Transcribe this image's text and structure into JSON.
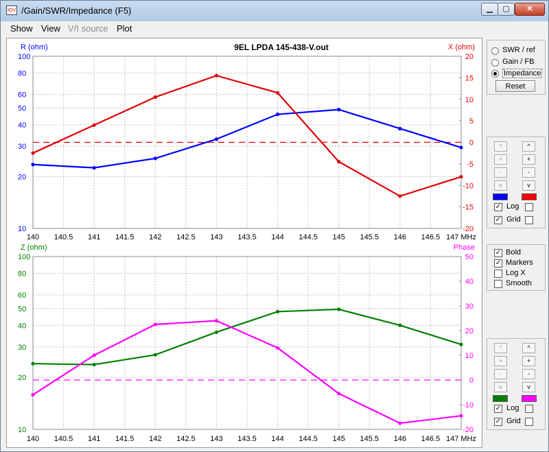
{
  "window": {
    "title": "/Gain/SWR/Impedance (F5)",
    "icon_label": "IOV"
  },
  "window_buttons": {
    "minimize": "▁",
    "maximize": "▢",
    "close": "✕"
  },
  "menu": [
    "Show",
    "View",
    "V/I source",
    "Plot"
  ],
  "menu_disabled": [
    false,
    false,
    true,
    false
  ],
  "display_mode": {
    "options": [
      "SWR / ref",
      "Gain / FB",
      "Impedance"
    ],
    "selected_index": 2,
    "reset_label": "Reset"
  },
  "top_axis_controls": {
    "left_color": "#0000ff",
    "right_color": "#ff0000",
    "log_label": "Log",
    "log_left": true,
    "log_right": false,
    "grid_label": "Grid",
    "grid_left": true,
    "grid_right": false
  },
  "display_options": {
    "bold_label": "Bold",
    "bold": true,
    "markers_label": "Markers",
    "markers": true,
    "logx_label": "Log X",
    "logx": false,
    "smooth_label": "Smooth",
    "smooth": false
  },
  "bottom_axis_controls": {
    "left_color": "#008000",
    "right_color": "#ff00ff",
    "log_label": "Log",
    "log_left": true,
    "log_right": false,
    "grid_label": "Grid",
    "grid_left": true,
    "grid_right": false
  },
  "spin_buttons": {
    "up": "^",
    "plus": "+",
    "minus": "-",
    "down": "v"
  },
  "chart_data": [
    {
      "type": "line",
      "title": "9EL LPDA 145-438-V.out",
      "x": [
        140,
        141,
        142,
        143,
        144,
        145,
        146,
        147
      ],
      "x_ticks": [
        "140",
        "140.5",
        "141",
        "141.5",
        "142",
        "142.5",
        "143",
        "143.5",
        "144",
        "144.5",
        "145",
        "145.5",
        "146",
        "146.5",
        "147 MHz"
      ],
      "xlim": [
        140,
        147
      ],
      "ylabel_left": "R (ohm)",
      "ylabel_right": "X (ohm)",
      "y_left_log": true,
      "ylim_left": [
        10,
        100
      ],
      "y_left_ticks": [
        "10",
        "20",
        "30",
        "40",
        "50",
        "60",
        "80",
        "100"
      ],
      "ylim_right": [
        -20,
        20
      ],
      "y_right_ticks": [
        "20",
        "15",
        "10",
        "5",
        "0",
        "-5",
        "-10",
        "-15",
        "-20"
      ],
      "grid": true,
      "reference_line_right": 0,
      "series": [
        {
          "name": "R (ohm)",
          "axis": "left",
          "color": "#0000ff",
          "values": [
            23.5,
            22.5,
            25.5,
            33,
            46,
            49,
            38,
            29.5
          ]
        },
        {
          "name": "X (ohm)",
          "axis": "right",
          "color": "#e00000",
          "values": [
            -2.5,
            4,
            10.5,
            15.5,
            11.5,
            -4.5,
            -12.5,
            -8
          ]
        }
      ]
    },
    {
      "type": "line",
      "title": "",
      "x": [
        140,
        141,
        142,
        143,
        144,
        145,
        146,
        147
      ],
      "x_ticks": [
        "140",
        "140.5",
        "141",
        "141.5",
        "142",
        "142.5",
        "143",
        "143.5",
        "144",
        "144.5",
        "145",
        "145.5",
        "146",
        "146.5",
        "147 MHz"
      ],
      "xlim": [
        140,
        147
      ],
      "ylabel_left": "Z (ohm)",
      "ylabel_right": "Phase",
      "y_left_log": true,
      "ylim_left": [
        10,
        100
      ],
      "y_left_ticks": [
        "10",
        "20",
        "30",
        "40",
        "50",
        "60",
        "80",
        "100"
      ],
      "ylim_right": [
        -20,
        50
      ],
      "y_right_ticks": [
        "50",
        "40",
        "30",
        "20",
        "10",
        "0",
        "-10",
        "-20"
      ],
      "grid": true,
      "reference_line_right": 0,
      "series": [
        {
          "name": "Z (ohm)",
          "axis": "left",
          "color": "#008000",
          "values": [
            24,
            23.7,
            27,
            36.5,
            48,
            49.5,
            40,
            31
          ]
        },
        {
          "name": "Phase",
          "axis": "right",
          "color": "#ff00ff",
          "values": [
            -6,
            10,
            22.5,
            24,
            13,
            -5.5,
            -17.5,
            -14.5
          ]
        }
      ]
    }
  ]
}
